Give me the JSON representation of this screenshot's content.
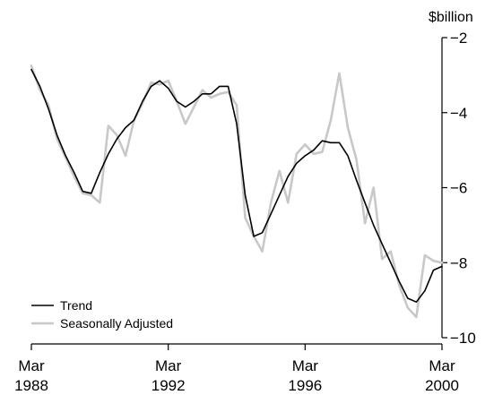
{
  "chart_data": {
    "type": "line",
    "title": "",
    "xlabel": "",
    "ylabel": "",
    "y_unit_label": "$billion",
    "y_axis_position": "right",
    "ylim": [
      -10,
      -2
    ],
    "y_ticks": [
      -2,
      -4,
      -6,
      -8,
      -10
    ],
    "y_tick_labels": [
      "−2",
      "−4",
      "−6",
      "−8",
      "−10"
    ],
    "xlim": [
      1988.0,
      2000.0
    ],
    "x_ticks": [
      {
        "x": 1988.0,
        "line1": "Mar",
        "line2": "1988"
      },
      {
        "x": 1992.0,
        "line1": "Mar",
        "line2": "1992"
      },
      {
        "x": 1996.0,
        "line1": "Mar",
        "line2": "1996"
      },
      {
        "x": 2000.0,
        "line1": "Mar",
        "line2": "2000"
      }
    ],
    "x": [
      1988.0,
      1988.25,
      1988.5,
      1988.75,
      1989.0,
      1989.25,
      1989.5,
      1989.75,
      1990.0,
      1990.25,
      1990.5,
      1990.75,
      1991.0,
      1991.25,
      1991.5,
      1991.75,
      1992.0,
      1992.25,
      1992.5,
      1992.75,
      1993.0,
      1993.25,
      1993.5,
      1993.75,
      1994.0,
      1994.25,
      1994.5,
      1994.75,
      1995.0,
      1995.25,
      1995.5,
      1995.75,
      1996.0,
      1996.25,
      1996.5,
      1996.75,
      1997.0,
      1997.25,
      1997.5,
      1997.75,
      1998.0,
      1998.25,
      1998.5,
      1998.75,
      1999.0,
      1999.25,
      1999.5,
      1999.75,
      2000.0
    ],
    "series": [
      {
        "name": "Trend",
        "color": "#000000",
        "values": [
          -2.85,
          -3.3,
          -3.9,
          -4.6,
          -5.15,
          -5.6,
          -6.1,
          -6.15,
          -5.6,
          -5.1,
          -4.7,
          -4.4,
          -4.2,
          -3.7,
          -3.3,
          -3.15,
          -3.35,
          -3.7,
          -3.85,
          -3.7,
          -3.5,
          -3.5,
          -3.3,
          -3.3,
          -4.3,
          -6.2,
          -7.3,
          -7.2,
          -6.7,
          -6.2,
          -5.7,
          -5.35,
          -5.15,
          -5.0,
          -4.75,
          -4.8,
          -4.8,
          -5.15,
          -5.8,
          -6.4,
          -7.0,
          -7.5,
          -8.0,
          -8.5,
          -8.95,
          -9.05,
          -8.75,
          -8.2,
          -8.1
        ]
      },
      {
        "name": "Seasonally Adjusted",
        "color": "#c8c8c8",
        "values": [
          -2.75,
          -3.4,
          -3.8,
          -4.7,
          -5.2,
          -5.7,
          -6.15,
          -6.2,
          -6.4,
          -4.35,
          -4.6,
          -5.15,
          -4.2,
          -3.75,
          -3.2,
          -3.25,
          -3.15,
          -3.7,
          -4.3,
          -3.85,
          -3.4,
          -3.6,
          -3.5,
          -3.45,
          -3.8,
          -6.8,
          -7.3,
          -7.7,
          -6.4,
          -5.55,
          -6.4,
          -5.1,
          -4.85,
          -5.1,
          -5.05,
          -4.2,
          -2.95,
          -4.4,
          -5.25,
          -6.95,
          -6.0,
          -7.9,
          -7.7,
          -8.6,
          -9.2,
          -9.45,
          -7.8,
          -7.95,
          -8.0
        ]
      }
    ],
    "legend": {
      "position": "bottom-left",
      "entries": [
        "Trend",
        "Seasonally Adjusted"
      ]
    },
    "grid": false
  }
}
